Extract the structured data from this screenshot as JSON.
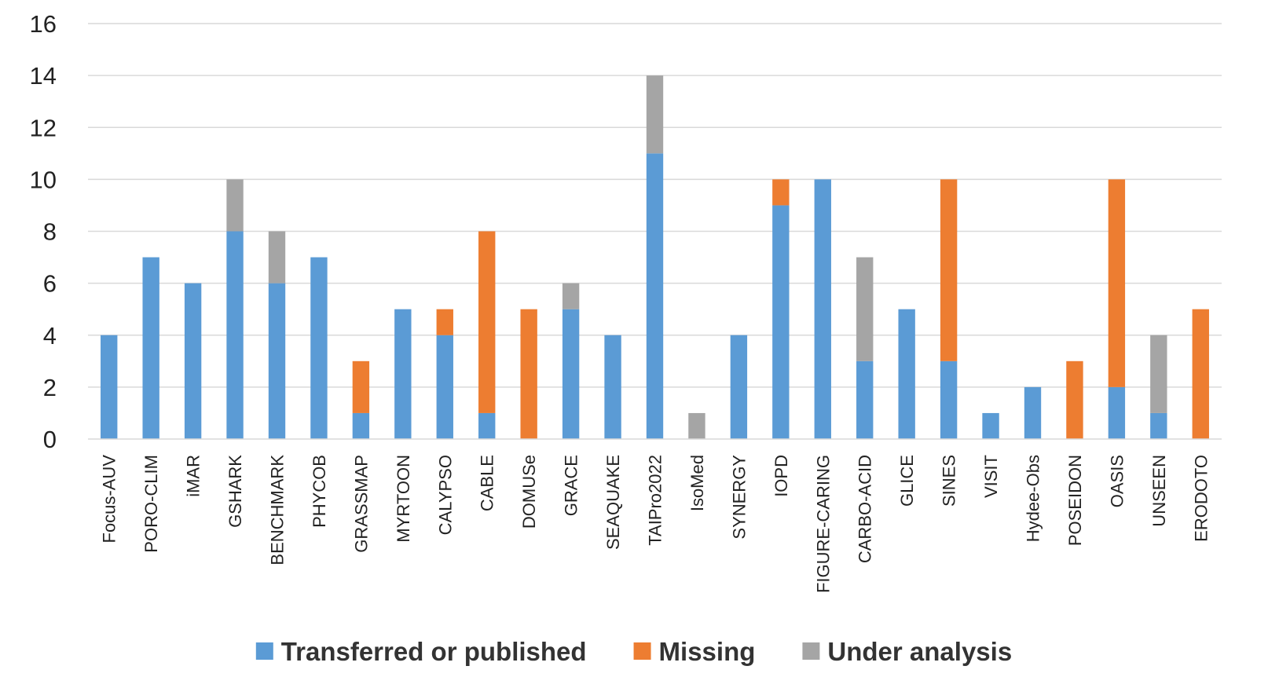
{
  "chart_data": {
    "type": "bar",
    "stacked": true,
    "title": "",
    "xlabel": "",
    "ylabel": "",
    "ylim": [
      0,
      16
    ],
    "yticks": [
      0,
      2,
      4,
      6,
      8,
      10,
      12,
      14,
      16
    ],
    "grid": true,
    "legend_position": "bottom",
    "categories": [
      "Focus-AUV",
      "PORO-CLIM",
      "iMAR",
      "GSHARK",
      "BENCHMARK",
      "PHYCOB",
      "GRASSMAP",
      "MYRTOON",
      "CALYPSO",
      "CABLE",
      "DOMUSe",
      "GRACE",
      "SEAQUAKE",
      "TAIPro2022",
      "IsoMed",
      "SYNERGY",
      "IOPD",
      "FIGURE-CARING",
      "CARBO-ACID",
      "GLICE",
      "SINES",
      "VISIT",
      "Hydee-Obs",
      "POSEIDON",
      "OASIS",
      "UNSEEN",
      "ERODOTO"
    ],
    "series": [
      {
        "name": "Transferred or published",
        "color": "#5b9bd5",
        "values": [
          4,
          7,
          6,
          8,
          6,
          7,
          1,
          5,
          4,
          1,
          0,
          5,
          4,
          11,
          0,
          4,
          9,
          10,
          3,
          5,
          3,
          1,
          2,
          0,
          2,
          1,
          0
        ]
      },
      {
        "name": "Missing",
        "color": "#ed7d31",
        "values": [
          0,
          0,
          0,
          0,
          0,
          0,
          2,
          0,
          1,
          7,
          5,
          0,
          0,
          0,
          0,
          0,
          1,
          0,
          0,
          0,
          7,
          0,
          0,
          3,
          8,
          0,
          5
        ]
      },
      {
        "name": "Under analysis",
        "color": "#a5a5a5",
        "values": [
          0,
          0,
          0,
          2,
          2,
          0,
          0,
          0,
          0,
          0,
          0,
          1,
          0,
          3,
          1,
          0,
          0,
          0,
          4,
          0,
          0,
          0,
          0,
          0,
          0,
          3,
          0
        ]
      }
    ]
  }
}
